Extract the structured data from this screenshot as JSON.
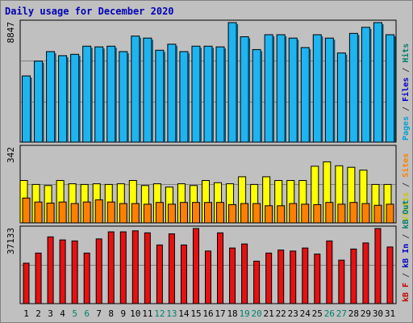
{
  "chart_data": {
    "type": "bar",
    "title": "Daily usage for December 2020",
    "categories": [
      "1",
      "2",
      "3",
      "4",
      "5",
      "6",
      "7",
      "8",
      "9",
      "10",
      "11",
      "12",
      "13",
      "14",
      "15",
      "16",
      "17",
      "18",
      "19",
      "20",
      "21",
      "22",
      "23",
      "24",
      "25",
      "26",
      "27",
      "28",
      "29",
      "30",
      "31"
    ],
    "weekend_days": [
      "5",
      "6",
      "12",
      "13",
      "19",
      "20",
      "26",
      "27"
    ],
    "panels": [
      {
        "name": "top",
        "max_label": "8847",
        "ylim": [
          0,
          8847
        ],
        "side_legend": [
          {
            "text": "Pages",
            "color": "#00a0d8"
          },
          {
            "text": "Files",
            "color": "#0000c8"
          },
          {
            "text": "Hits",
            "color": "#00806a"
          }
        ],
        "series": [
          {
            "name": "Pages",
            "color": "#1eb4f0",
            "values": [
              4900,
              6000,
              6700,
              6400,
              6500,
              7100,
              7050,
              7100,
              6700,
              7850,
              7700,
              6800,
              7250,
              6700,
              7100,
              7100,
              7050,
              8847,
              7800,
              6850,
              7950,
              7950,
              7700,
              7000,
              7950,
              7700,
              6600,
              8050,
              8500,
              8847,
              7950
            ]
          }
        ]
      },
      {
        "name": "middle",
        "max_label": "342",
        "ylim": [
          0,
          342
        ],
        "side_legend": [
          {
            "text": "Visits",
            "color": "#c8c800"
          },
          {
            "text": "/",
            "color": "#404040"
          },
          {
            "text": "Sites",
            "color": "#ff8000"
          }
        ],
        "series": [
          {
            "name": "Visits",
            "color": "#ffff00",
            "values": [
              193,
              175,
              170,
              193,
              178,
              175,
              178,
              175,
              178,
              193,
              170,
              178,
              163,
              178,
              170,
              193,
              183,
              178,
              210,
              175,
              210,
              193,
              193,
              193,
              258,
              278,
              260,
              253,
              240,
              175,
              175
            ]
          },
          {
            "name": "Sites",
            "color": "#ff8000",
            "values": [
              113,
              95,
              90,
              95,
              88,
              95,
              105,
              95,
              88,
              88,
              85,
              93,
              85,
              93,
              93,
              93,
              93,
              83,
              88,
              88,
              78,
              78,
              88,
              85,
              83,
              93,
              85,
              93,
              88,
              80,
              85
            ]
          }
        ]
      },
      {
        "name": "bottom",
        "max_label": "37133",
        "ylim": [
          0,
          37133
        ],
        "side_legend": [
          {
            "text": "kB F",
            "color": "#c80000"
          },
          {
            "text": "kB In",
            "color": "#0000c8"
          },
          {
            "text": "kB Out",
            "color": "#00806a"
          }
        ],
        "series": [
          {
            "name": "kB F",
            "color": "#e81010",
            "values": [
              20000,
              25000,
              33000,
              31500,
              31000,
              25000,
              32000,
              35500,
              35500,
              36000,
              35000,
              29000,
              34500,
              29000,
              37133,
              26000,
              35000,
              27500,
              29500,
              21000,
              25000,
              26500,
              26000,
              27500,
              24500,
              31000,
              21500,
              27000,
              30000,
              37133,
              28000
            ]
          }
        ]
      }
    ]
  }
}
